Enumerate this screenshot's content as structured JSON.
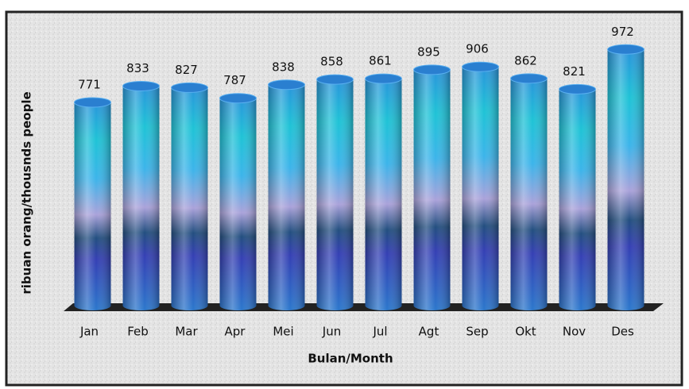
{
  "chart_data": {
    "type": "bar",
    "categories": [
      "Jan",
      "Feb",
      "Mar",
      "Apr",
      "Mei",
      "Jun",
      "Jul",
      "Agt",
      "Sep",
      "Okt",
      "Nov",
      "Des"
    ],
    "values": [
      771,
      833,
      827,
      787,
      838,
      858,
      861,
      895,
      906,
      862,
      821,
      972
    ],
    "ylim": [
      0,
      1000
    ],
    "x_label": "Bulan/Month",
    "y_label": "ribuan orang/thousnds people",
    "color": "#2a7fd0"
  }
}
